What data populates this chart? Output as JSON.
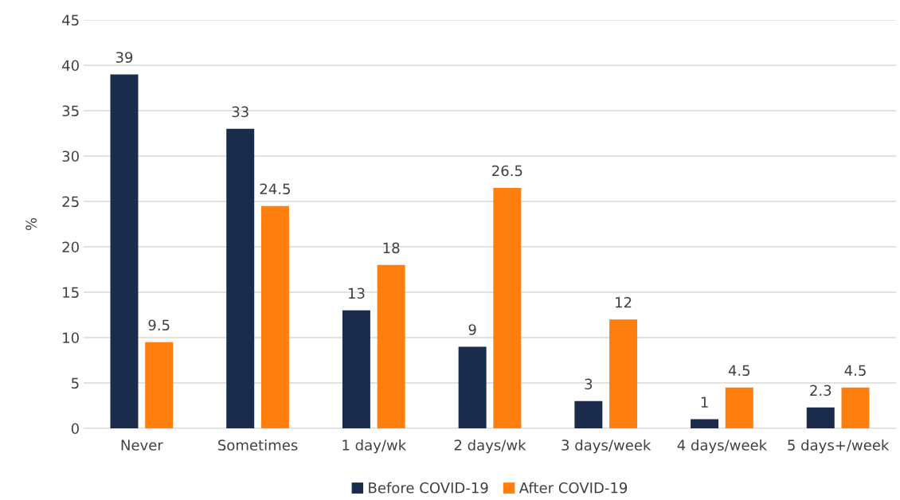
{
  "chart_data": {
    "type": "bar",
    "ylabel": "%",
    "categories": [
      "Never",
      "Sometimes",
      "1 day/wk",
      "2 days/wk",
      "3 days/week",
      "4 days/week",
      "5 days+/week"
    ],
    "series": [
      {
        "name": "Before COVID-19",
        "color": "#1b2b4b",
        "values": [
          39,
          33,
          13,
          9,
          3,
          1,
          2.3
        ]
      },
      {
        "name": "After COVID-19",
        "color": "#ff7f0e",
        "values": [
          9.5,
          24.5,
          18,
          26.5,
          12,
          4.5,
          4.5
        ]
      }
    ],
    "ylim": [
      0,
      45
    ],
    "yticks": [
      0,
      5,
      10,
      15,
      20,
      25,
      30,
      35,
      40,
      45
    ],
    "grid": "y",
    "legend": "bottom",
    "data_labels": true
  }
}
